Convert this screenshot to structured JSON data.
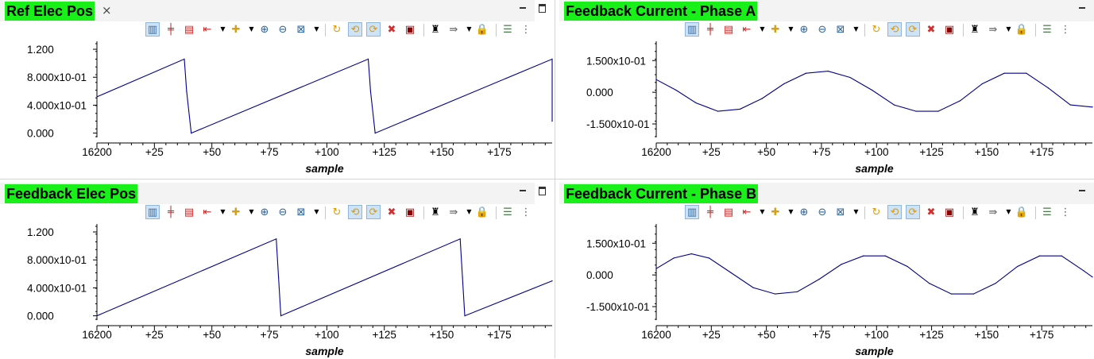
{
  "panels": [
    {
      "title": "Ref Elec Pos",
      "closable": true,
      "close_glyph": "×",
      "y_ticks": [
        "1.200",
        "8.000x10-01",
        "4.000x10-01",
        "0.000"
      ],
      "y_tick_values": [
        1.2,
        0.8,
        0.4,
        0.0
      ],
      "x_ticks": [
        "16200",
        "+25",
        "+50",
        "+75",
        "+100",
        "+125",
        "+150",
        "+175"
      ],
      "x_label": "sample",
      "chart_data": {
        "type": "line",
        "series_color": "#00008b",
        "x_range": [
          16200,
          16398
        ],
        "y_range": [
          -0.05,
          1.28
        ],
        "x": [
          16200,
          16238,
          16239,
          16241,
          16318,
          16319,
          16321,
          16398,
          16398
        ],
        "y": [
          0.52,
          1.06,
          0.6,
          0.0,
          1.06,
          0.6,
          0.0,
          1.06,
          0.17
        ]
      }
    },
    {
      "title": "Feedback Current - Phase A",
      "closable": false,
      "y_ticks": [
        "1.500x10-01",
        "0.000",
        "-1.500x10-01"
      ],
      "y_tick_values": [
        0.15,
        0.0,
        -0.15
      ],
      "x_ticks": [
        "16200",
        "+25",
        "+50",
        "+75",
        "+100",
        "+125",
        "+150",
        "+175"
      ],
      "x_label": "sample",
      "chart_data": {
        "type": "line",
        "series_color": "#00008b",
        "x_range": [
          16200,
          16398
        ],
        "y_range": [
          -0.21,
          0.23
        ],
        "x": [
          16200,
          16209,
          16218,
          16228,
          16238,
          16248,
          16258,
          16268,
          16278,
          16288,
          16298,
          16308,
          16318,
          16328,
          16338,
          16348,
          16358,
          16368,
          16378,
          16388,
          16398
        ],
        "y": [
          0.06,
          0.01,
          -0.05,
          -0.09,
          -0.08,
          -0.03,
          0.04,
          0.09,
          0.1,
          0.07,
          0.01,
          -0.06,
          -0.09,
          -0.09,
          -0.04,
          0.04,
          0.09,
          0.09,
          0.02,
          -0.06,
          -0.07
        ]
      }
    },
    {
      "title": "Feedback Elec Pos",
      "closable": false,
      "y_ticks": [
        "1.200",
        "8.000x10-01",
        "4.000x10-01",
        "0.000"
      ],
      "y_tick_values": [
        1.2,
        0.8,
        0.4,
        0.0
      ],
      "x_ticks": [
        "16200",
        "+25",
        "+50",
        "+75",
        "+100",
        "+125",
        "+150",
        "+175"
      ],
      "x_label": "sample",
      "chart_data": {
        "type": "line",
        "series_color": "#00008b",
        "x_range": [
          16200,
          16398
        ],
        "y_range": [
          -0.05,
          1.28
        ],
        "x": [
          16200,
          16278,
          16279,
          16280,
          16358,
          16359,
          16360,
          16398
        ],
        "y": [
          0.0,
          1.1,
          0.55,
          0.0,
          1.1,
          0.55,
          0.0,
          0.5
        ]
      }
    },
    {
      "title": "Feedback Current - Phase B",
      "closable": false,
      "y_ticks": [
        "1.500x10-01",
        "0.000",
        "-1.500x10-01"
      ],
      "y_tick_values": [
        0.15,
        0.0,
        -0.15
      ],
      "x_ticks": [
        "16200",
        "+25",
        "+50",
        "+75",
        "+100",
        "+125",
        "+150",
        "+175"
      ],
      "x_label": "sample",
      "chart_data": {
        "type": "line",
        "series_color": "#00008b",
        "x_range": [
          16200,
          16398
        ],
        "y_range": [
          -0.21,
          0.23
        ],
        "x": [
          16200,
          16208,
          16216,
          16224,
          16234,
          16244,
          16254,
          16264,
          16274,
          16284,
          16294,
          16304,
          16314,
          16324,
          16334,
          16344,
          16354,
          16364,
          16374,
          16384,
          16394,
          16398
        ],
        "y": [
          0.03,
          0.08,
          0.1,
          0.08,
          0.01,
          -0.06,
          -0.09,
          -0.08,
          -0.02,
          0.05,
          0.09,
          0.09,
          0.04,
          -0.04,
          -0.09,
          -0.09,
          -0.04,
          0.04,
          0.09,
          0.09,
          0.02,
          -0.01
        ]
      }
    }
  ],
  "window_controls": {
    "minimize_icon": "minimize-icon",
    "maximize_icon": "maximize-icon"
  },
  "toolbar": {
    "items": [
      {
        "name": "chart-properties-icon",
        "glyph": "▥",
        "color": "#3a6ea5",
        "selected": true
      },
      {
        "name": "add-horizontal-marker-icon",
        "glyph": "╪",
        "color": "#c62828",
        "selected": false
      },
      {
        "name": "add-vertical-marker-icon",
        "glyph": "▤",
        "color": "#c62828",
        "selected": false
      },
      {
        "name": "axis-options-icon",
        "glyph": "⇤",
        "color": "#c62828",
        "selected": false
      },
      {
        "name": "axis-options-dropdown-icon",
        "glyph": "▼",
        "color": "#000000",
        "dropdown": true
      },
      {
        "name": "add-series-icon",
        "glyph": "✚",
        "color": "#d4a017",
        "selected": false
      },
      {
        "name": "add-series-dropdown-icon",
        "glyph": "▼",
        "color": "#000000",
        "dropdown": true
      },
      {
        "name": "zoom-in-icon",
        "glyph": "⊕",
        "color": "#2a6099",
        "selected": false
      },
      {
        "name": "zoom-out-icon",
        "glyph": "⊖",
        "color": "#2a6099",
        "selected": false
      },
      {
        "name": "zoom-select-icon",
        "glyph": "⊠",
        "color": "#2a6099",
        "selected": false
      },
      {
        "name": "zoom-select-dropdown-icon",
        "glyph": "▼",
        "color": "#000000",
        "dropdown": true
      },
      {
        "name": "separator",
        "sep": true
      },
      {
        "name": "refresh-icon",
        "glyph": "↻",
        "color": "#e09b00",
        "selected": false
      },
      {
        "name": "continuous-refresh-icon",
        "glyph": "⟲",
        "color": "#e09b00",
        "selected": true
      },
      {
        "name": "sync-refresh-icon",
        "glyph": "⟳",
        "color": "#e09b00",
        "selected": true
      },
      {
        "name": "remove-series-icon",
        "glyph": "✖",
        "color": "#d32f2f",
        "selected": false
      },
      {
        "name": "reset-graph-icon",
        "glyph": "▣",
        "color": "#8b0000",
        "selected": false
      },
      {
        "name": "separator",
        "sep": true
      },
      {
        "name": "find-icon",
        "glyph": "♜",
        "color": "#000000",
        "selected": false
      },
      {
        "name": "export-icon",
        "glyph": "⇛",
        "color": "#666666",
        "selected": false
      },
      {
        "name": "export-dropdown-icon",
        "glyph": "▼",
        "color": "#000000",
        "dropdown": true
      },
      {
        "name": "lock-icon",
        "glyph": "🔒",
        "color": "#b8860b",
        "selected": false
      },
      {
        "name": "separator",
        "sep": true
      },
      {
        "name": "properties-icon",
        "glyph": "☰",
        "color": "#4a7a4a",
        "selected": false
      },
      {
        "name": "more-options-icon",
        "glyph": "⋮",
        "color": "#555555",
        "selected": false
      }
    ]
  }
}
